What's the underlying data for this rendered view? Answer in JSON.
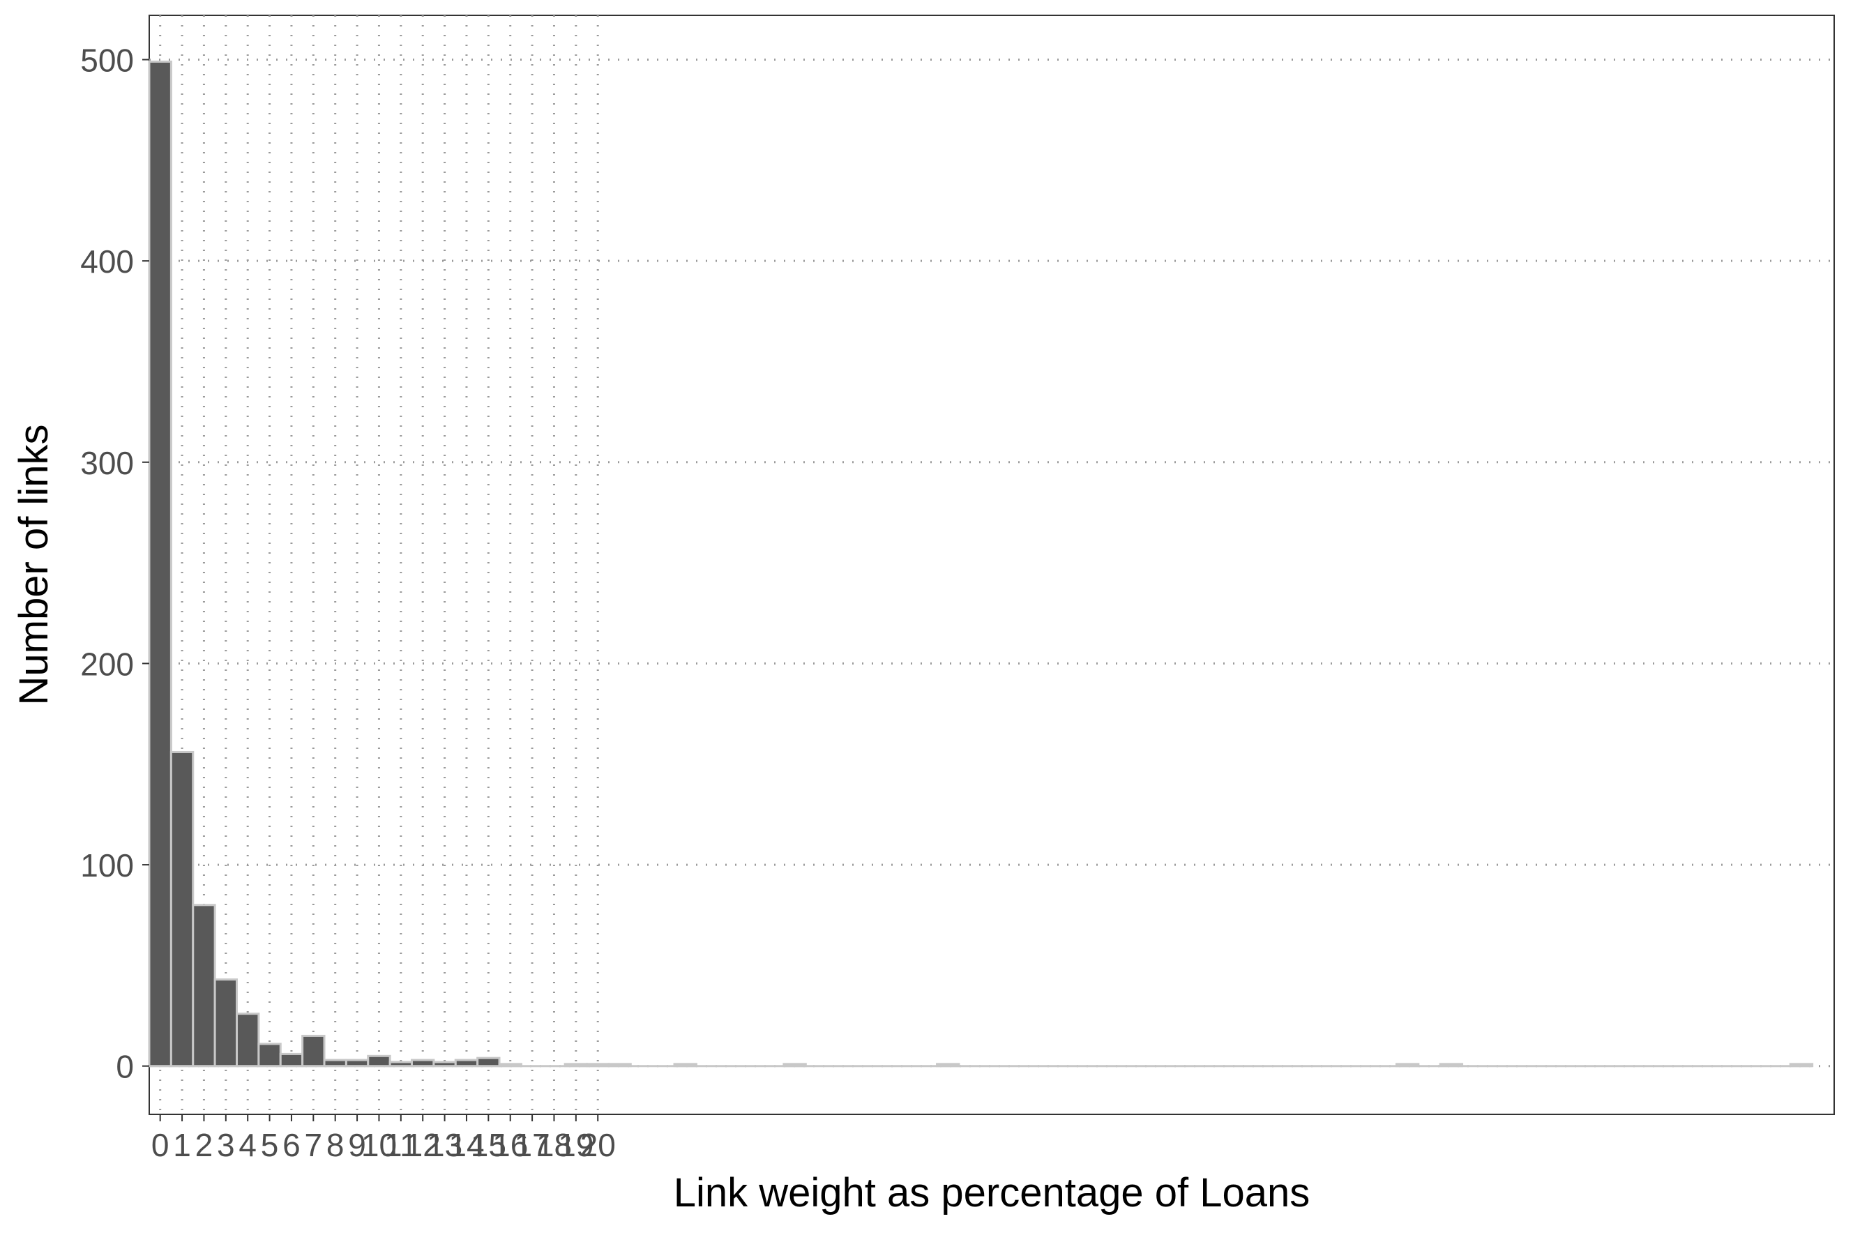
{
  "chart_data": {
    "type": "bar",
    "title": "",
    "xlabel": "Link weight as percentage of Loans",
    "ylabel": "Number of links",
    "xlim": [
      -0.5,
      76.5
    ],
    "ylim": [
      -24,
      522
    ],
    "y_ticks": [
      0,
      100,
      200,
      300,
      400,
      500
    ],
    "x_ticks": [
      0,
      1,
      2,
      3,
      4,
      5,
      6,
      7,
      8,
      9,
      10,
      11,
      12,
      13,
      14,
      15,
      16,
      17,
      18,
      19,
      20
    ],
    "grid": "dotted",
    "bin_width": 1,
    "bins": [
      {
        "x": 0,
        "value": 499
      },
      {
        "x": 1,
        "value": 156
      },
      {
        "x": 2,
        "value": 80
      },
      {
        "x": 3,
        "value": 43
      },
      {
        "x": 4,
        "value": 26
      },
      {
        "x": 5,
        "value": 11
      },
      {
        "x": 6,
        "value": 6
      },
      {
        "x": 7,
        "value": 15
      },
      {
        "x": 8,
        "value": 3
      },
      {
        "x": 9,
        "value": 3
      },
      {
        "x": 10,
        "value": 5
      },
      {
        "x": 11,
        "value": 2
      },
      {
        "x": 12,
        "value": 3
      },
      {
        "x": 13,
        "value": 2
      },
      {
        "x": 14,
        "value": 3
      },
      {
        "x": 15,
        "value": 4
      },
      {
        "x": 16,
        "value": 1
      },
      {
        "x": 19,
        "value": 1
      },
      {
        "x": 20,
        "value": 1
      },
      {
        "x": 21,
        "value": 1
      },
      {
        "x": 24,
        "value": 1
      },
      {
        "x": 29,
        "value": 1
      },
      {
        "x": 36,
        "value": 1
      },
      {
        "x": 57,
        "value": 1
      },
      {
        "x": 59,
        "value": 1
      },
      {
        "x": 75,
        "value": 1
      }
    ]
  },
  "colors": {
    "bar_fill": "#595959",
    "bar_stroke": "#c8c8c8",
    "grid": "#9a9a9a",
    "axis": "#333333",
    "text": "#4d4d4d",
    "title_text": "#000000"
  }
}
